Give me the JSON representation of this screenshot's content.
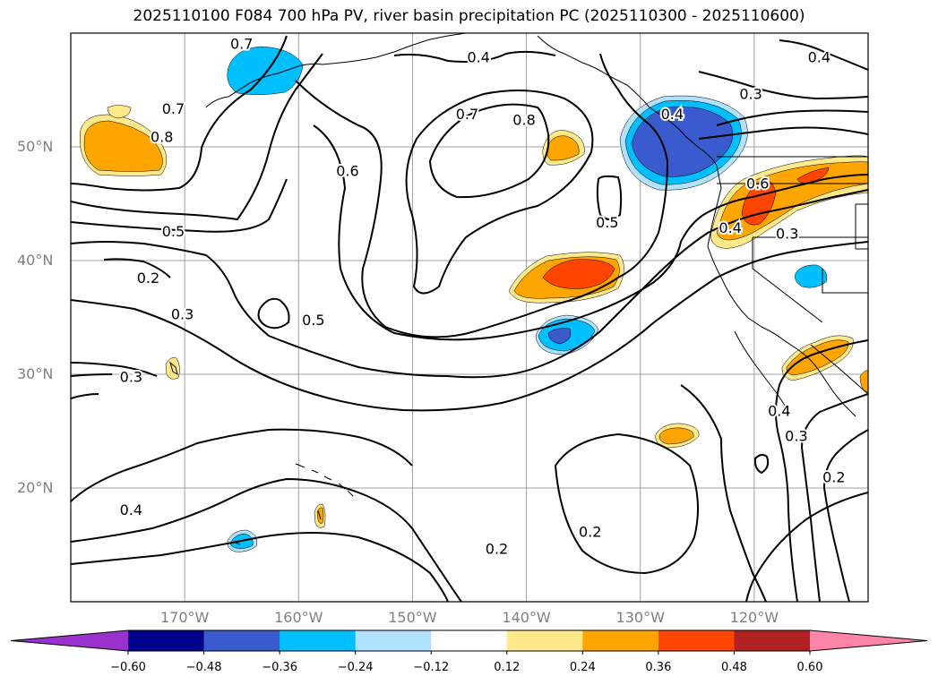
{
  "title": "2025110100 F084 700 hPa PV, river basin precipitation PC (2025110300 - 2025110600)",
  "map": {
    "extent": {
      "lon_min": -180,
      "lon_max": -110,
      "lat_min": 10,
      "lat_max": 60
    },
    "lat_ticks": [
      {
        "value": 50,
        "label": "50°N"
      },
      {
        "value": 40,
        "label": "40°N"
      },
      {
        "value": 30,
        "label": "30°N"
      },
      {
        "value": 20,
        "label": "20°N"
      }
    ],
    "lon_ticks": [
      {
        "value": -170,
        "label": "170°W"
      },
      {
        "value": -160,
        "label": "160°W"
      },
      {
        "value": -150,
        "label": "150°W"
      },
      {
        "value": -140,
        "label": "140°W"
      },
      {
        "value": -130,
        "label": "130°W"
      },
      {
        "value": -120,
        "label": "120°W"
      }
    ],
    "grid": true,
    "contour_labels": [
      {
        "text": "0.7",
        "lon": -165.0,
        "lat": 59.1
      },
      {
        "text": "0.4",
        "lon": -144.2,
        "lat": 57.9
      },
      {
        "text": "0.4",
        "lon": -114.3,
        "lat": 57.9
      },
      {
        "text": "0.3",
        "lon": -120.3,
        "lat": 54.7
      },
      {
        "text": "0.7",
        "lon": -171.0,
        "lat": 53.4
      },
      {
        "text": "0.7",
        "lon": -145.2,
        "lat": 52.9
      },
      {
        "text": "0.8",
        "lon": -140.2,
        "lat": 52.4
      },
      {
        "text": "0.4",
        "lon": -127.2,
        "lat": 52.9
      },
      {
        "text": "0.8",
        "lon": -172.0,
        "lat": 50.9
      },
      {
        "text": "0.6",
        "lon": -155.7,
        "lat": 47.9
      },
      {
        "text": "0.6",
        "lon": -119.7,
        "lat": 46.8
      },
      {
        "text": "0.5",
        "lon": -132.9,
        "lat": 43.4
      },
      {
        "text": "0.4",
        "lon": -122.1,
        "lat": 42.9
      },
      {
        "text": "0.5",
        "lon": -171.0,
        "lat": 42.6
      },
      {
        "text": "0.3",
        "lon": -117.1,
        "lat": 42.4
      },
      {
        "text": "0.2",
        "lon": -173.2,
        "lat": 38.5
      },
      {
        "text": "0.3",
        "lon": -170.2,
        "lat": 35.3
      },
      {
        "text": "0.5",
        "lon": -158.7,
        "lat": 34.8
      },
      {
        "text": "0.3",
        "lon": -174.7,
        "lat": 29.8
      },
      {
        "text": "0.4",
        "lon": -117.8,
        "lat": 26.8
      },
      {
        "text": "0.3",
        "lon": -116.3,
        "lat": 24.6
      },
      {
        "text": "0.2",
        "lon": -113.0,
        "lat": 21.0
      },
      {
        "text": "0.4",
        "lon": -174.7,
        "lat": 18.1
      },
      {
        "text": "0.2",
        "lon": -134.4,
        "lat": 16.2
      },
      {
        "text": "0.2",
        "lon": -142.6,
        "lat": 14.7
      }
    ]
  },
  "colorbar": {
    "ticks": [
      "−0.60",
      "−0.48",
      "−0.36",
      "−0.24",
      "−0.12",
      "0.12",
      "0.24",
      "0.36",
      "0.48",
      "0.60"
    ],
    "tick_values": [
      -0.6,
      -0.48,
      -0.36,
      -0.24,
      -0.12,
      0.12,
      0.24,
      0.36,
      0.48,
      0.6
    ],
    "colors": [
      "#9932cc",
      "#00008b",
      "#3a5bcd",
      "#00bfff",
      "#b0e2ff",
      "#ffffff",
      "#ffe98a",
      "#ffa500",
      "#ff4500",
      "#b22222",
      "#ff85a8"
    ],
    "extend": "both"
  }
}
